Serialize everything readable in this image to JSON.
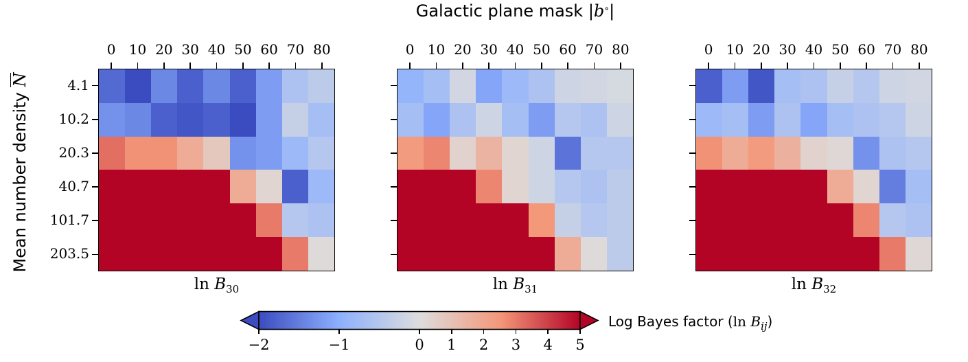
{
  "chart_data": {
    "type": "heatmap",
    "title": {
      "prefix": "Galactic plane mask |",
      "var": "b",
      "sup": "∘",
      "suffix": "|"
    },
    "ylabel": {
      "text": "Mean number density ",
      "var": "N"
    },
    "x_tick_labels": [
      "0",
      "10",
      "20",
      "30",
      "40",
      "50",
      "60",
      "70",
      "80"
    ],
    "y_tick_labels": [
      "4.1",
      "10.2",
      "20.3",
      "40.7",
      "101.7",
      "203.5"
    ],
    "scale": {
      "vmin": -2,
      "vcenter": 0,
      "vmax": 5
    },
    "colormap": {
      "name": "coolwarm",
      "anchors": [
        "#3b4cc0",
        "#8db0fe",
        "#dddddd",
        "#f4987a",
        "#b40426"
      ]
    },
    "colors": {
      "background": "#ffffff",
      "axes": "#000000"
    },
    "panels": [
      {
        "label": {
          "ln": "ln ",
          "var": "B",
          "sub": "30"
        },
        "values": [
          [
            -1.7,
            -2.0,
            -1.4,
            -1.8,
            -1.4,
            -1.8,
            -1.2,
            -0.6,
            -0.4
          ],
          [
            -1.3,
            -1.4,
            -1.8,
            -1.9,
            -1.8,
            -2.0,
            -1.2,
            -0.3,
            -0.7
          ],
          [
            3.2,
            2.6,
            2.6,
            1.8,
            0.8,
            -1.3,
            -1.2,
            -0.8,
            -0.5
          ],
          [
            6.0,
            6.0,
            6.0,
            6.0,
            6.0,
            1.8,
            0.3,
            -1.8,
            -0.8
          ],
          [
            6.0,
            6.0,
            6.0,
            6.0,
            6.0,
            6.0,
            3.0,
            -0.5,
            -0.6
          ],
          [
            6.0,
            6.0,
            6.0,
            6.0,
            6.0,
            6.0,
            6.0,
            3.0,
            0.1
          ]
        ]
      },
      {
        "label": {
          "ln": "ln ",
          "var": "B",
          "sub": "31"
        },
        "values": [
          [
            -0.9,
            -0.7,
            -0.15,
            -1.1,
            -0.8,
            -0.6,
            -0.2,
            -0.15,
            -0.1
          ],
          [
            -0.7,
            -1.1,
            -0.6,
            -0.2,
            -0.7,
            -1.2,
            -0.5,
            -0.6,
            -0.2
          ],
          [
            2.4,
            2.8,
            0.4,
            1.5,
            0.3,
            -0.2,
            -1.6,
            -0.5,
            -0.5
          ],
          [
            6.0,
            6.0,
            6.0,
            2.8,
            0.3,
            -0.2,
            -0.5,
            -0.6,
            -0.4
          ],
          [
            6.0,
            6.0,
            6.0,
            6.0,
            6.0,
            2.5,
            -0.3,
            -0.5,
            -0.4
          ],
          [
            6.0,
            6.0,
            6.0,
            6.0,
            6.0,
            6.0,
            1.8,
            0.1,
            -0.4
          ]
        ]
      },
      {
        "label": {
          "ln": "ln ",
          "var": "B",
          "sub": "32"
        },
        "values": [
          [
            -1.8,
            -1.2,
            -1.9,
            -0.7,
            -0.6,
            -0.3,
            -0.5,
            -0.2,
            -0.15
          ],
          [
            -0.8,
            -0.7,
            -1.2,
            -0.6,
            -1.1,
            -0.7,
            -0.6,
            -0.5,
            -0.2
          ],
          [
            2.6,
            1.8,
            2.4,
            1.6,
            0.4,
            0.2,
            -1.3,
            -0.6,
            -0.5
          ],
          [
            6.0,
            6.0,
            6.0,
            6.0,
            6.0,
            1.8,
            0.3,
            -1.5,
            -0.7
          ],
          [
            6.0,
            6.0,
            6.0,
            6.0,
            6.0,
            6.0,
            2.8,
            -0.5,
            -0.6
          ],
          [
            6.0,
            6.0,
            6.0,
            6.0,
            6.0,
            6.0,
            6.0,
            3.0,
            0.2
          ]
        ]
      }
    ],
    "colorbar": {
      "label": {
        "prefix": "Log Bayes factor (",
        "ln": "ln ",
        "var": "B",
        "sub": "ij",
        "suffix": ")"
      },
      "ticks": [
        {
          "label": "−2",
          "t": 0.0
        },
        {
          "label": "−1",
          "t": 0.25
        },
        {
          "label": "0",
          "t": 0.5
        },
        {
          "label": "1",
          "t": 0.6
        },
        {
          "label": "2",
          "t": 0.7
        },
        {
          "label": "3",
          "t": 0.8
        },
        {
          "label": "4",
          "t": 0.9
        },
        {
          "label": "5",
          "t": 1.0
        }
      ]
    }
  }
}
